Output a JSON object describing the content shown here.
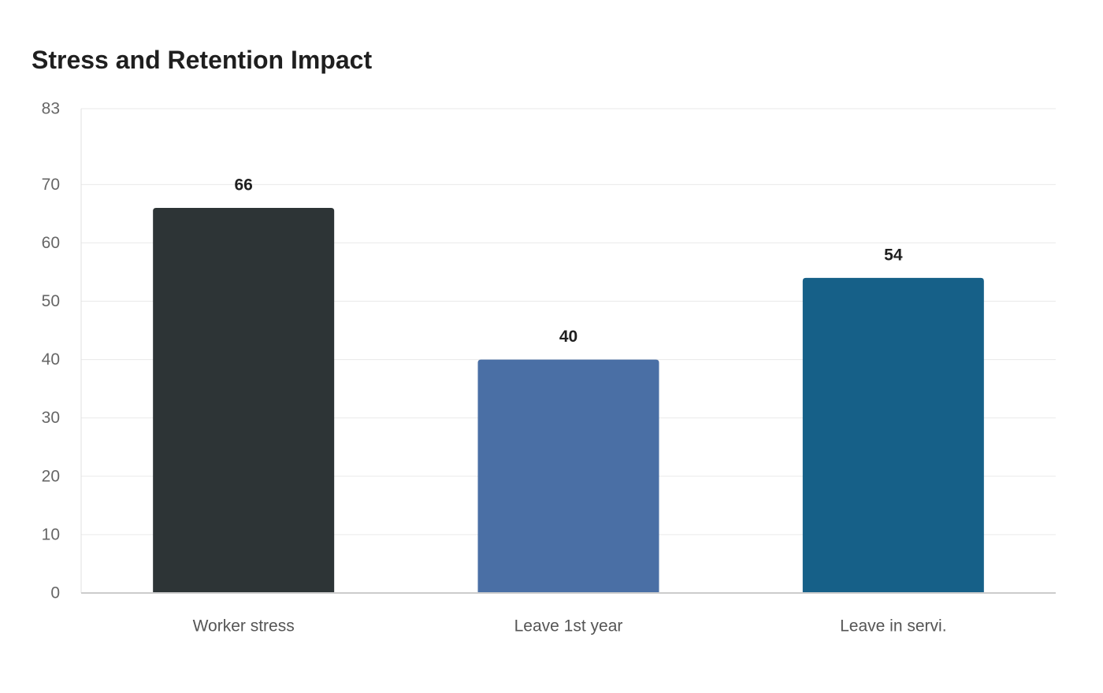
{
  "chart_data": {
    "type": "bar",
    "title": "Stress and Retention Impact",
    "xlabel": "",
    "ylabel": "",
    "categories": [
      "Worker stress",
      "Leave 1st year",
      "Leave in servi."
    ],
    "values": [
      66,
      40,
      54
    ],
    "value_labels": [
      "66",
      "40",
      "54"
    ],
    "colors": [
      "#2d3436",
      "#4a6fa5",
      "#166088"
    ],
    "ylim": [
      0,
      83
    ],
    "yticks": [
      0,
      10,
      20,
      30,
      40,
      50,
      60,
      70,
      83
    ],
    "ytick_labels": [
      "0",
      "10",
      "20",
      "30",
      "40",
      "50",
      "60",
      "70",
      "83"
    ],
    "grid": true,
    "legend": "none"
  }
}
